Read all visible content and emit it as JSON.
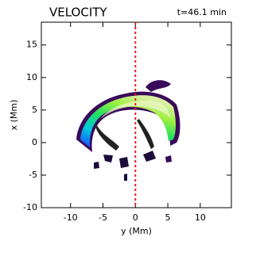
{
  "chart_data": {
    "type": "image",
    "title": "VELOCITY",
    "annotation": "t=46.1 min",
    "xlabel": "y (Mm)",
    "ylabel": "x (Mm)",
    "xlim": [
      -14.5,
      14.8
    ],
    "ylim": [
      -10,
      18.5
    ],
    "xticks": [
      -10,
      -5,
      0,
      5,
      10
    ],
    "yticks": [
      -10,
      -5,
      0,
      5,
      10,
      15
    ],
    "vline": 0,
    "vline_color": "#e0201c"
  }
}
